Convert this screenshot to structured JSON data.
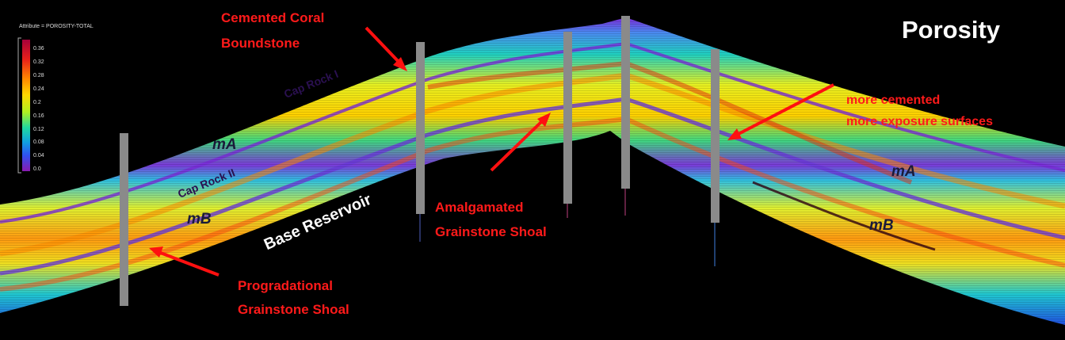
{
  "title": "Porosity",
  "legend": {
    "attribute": "Attribute = POROSITY-TOTAL",
    "ticks": [
      "0.36",
      "0.32",
      "0.28",
      "0.24",
      "0.2",
      "0.16",
      "0.12",
      "0.08",
      "0.04",
      "0.0"
    ],
    "colors": [
      "#b0003a",
      "#e8201a",
      "#ff8a00",
      "#ffd800",
      "#c8f000",
      "#40e060",
      "#10d0c0",
      "#1a70ff",
      "#6a2ad0",
      "#8a1ab0"
    ]
  },
  "labels": {
    "cemented_coral": "Cemented Coral",
    "boundstone": "Boundstone",
    "cap_rock_1": "Cap Rock I",
    "cap_rock_2": "Cap Rock II",
    "ma_left": "mA",
    "mb_left": "mB",
    "ma_right": "mA",
    "mb_right": "mB",
    "base_reservoir": "Base Reservoir",
    "amalgamated": "Amalgamated",
    "grainstone_shoal_1": "Grainstone Shoal",
    "progradational": "Progradational",
    "grainstone_shoal_2": "Grainstone Shoal",
    "more_cemented": "more cemented",
    "more_exposure": "more exposure surfaces"
  }
}
